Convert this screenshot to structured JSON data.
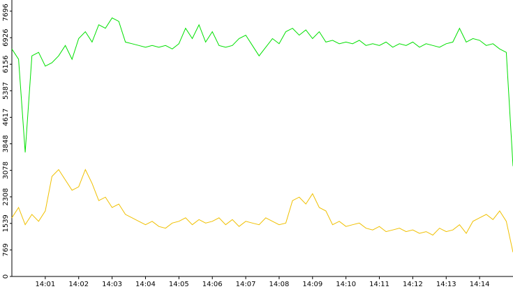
{
  "chart_data": {
    "type": "line",
    "x": [
      0,
      0.2,
      0.4,
      0.6,
      0.8,
      1,
      1.2,
      1.4,
      1.6,
      1.8,
      2,
      2.2,
      2.4,
      2.6,
      2.8,
      3,
      3.2,
      3.4,
      3.6,
      3.8,
      4,
      4.2,
      4.4,
      4.6,
      4.8,
      5,
      5.2,
      5.4,
      5.6,
      5.8,
      6,
      6.2,
      6.4,
      6.6,
      6.8,
      7,
      7.2,
      7.4,
      7.6,
      7.8,
      8,
      8.2,
      8.4,
      8.6,
      8.8,
      9,
      9.2,
      9.4,
      9.6,
      9.8,
      10,
      10.2,
      10.4,
      10.6,
      10.8,
      11,
      11.2,
      11.4,
      11.6,
      11.8,
      12,
      12.2,
      12.4,
      12.6,
      12.8,
      13,
      13.2,
      13.4,
      13.6,
      13.8,
      14,
      14.2,
      14.4,
      14.6,
      14.8,
      15
    ],
    "series": [
      {
        "color": "#00e000",
        "values": [
          6600,
          6300,
          3600,
          6400,
          6500,
          6100,
          6200,
          6400,
          6700,
          6300,
          6900,
          7100,
          6800,
          7300,
          7200,
          7500,
          7400,
          6800,
          6750,
          6700,
          6650,
          6700,
          6650,
          6700,
          6600,
          6750,
          7200,
          6900,
          7300,
          6800,
          7100,
          6700,
          6650,
          6700,
          6900,
          7000,
          6700,
          6400,
          6650,
          6900,
          6750,
          7100,
          7200,
          7000,
          7150,
          6900,
          7100,
          6800,
          6850,
          6750,
          6800,
          6750,
          6850,
          6700,
          6750,
          6700,
          6800,
          6650,
          6750,
          6700,
          6800,
          6650,
          6750,
          6700,
          6650,
          6750,
          6800,
          7200,
          6800,
          6900,
          6850,
          6700,
          6750,
          6600,
          6500,
          3200
        ]
      },
      {
        "color": "#f0c000",
        "values": [
          1700,
          2000,
          1500,
          1800,
          1600,
          1900,
          2900,
          3100,
          2800,
          2500,
          2600,
          3100,
          2700,
          2200,
          2300,
          2000,
          2100,
          1800,
          1700,
          1600,
          1500,
          1600,
          1450,
          1400,
          1550,
          1600,
          1700,
          1500,
          1650,
          1550,
          1600,
          1700,
          1500,
          1650,
          1450,
          1600,
          1550,
          1500,
          1700,
          1600,
          1500,
          1550,
          2200,
          2300,
          2100,
          2400,
          2000,
          1900,
          1500,
          1600,
          1450,
          1500,
          1550,
          1400,
          1350,
          1450,
          1300,
          1350,
          1400,
          1300,
          1350,
          1250,
          1300,
          1200,
          1400,
          1300,
          1350,
          1500,
          1250,
          1600,
          1700,
          1800,
          1650,
          1900,
          1600,
          700
        ]
      }
    ],
    "xlim": [
      0,
      15
    ],
    "xticks": [
      {
        "value": 1,
        "label": "14:01"
      },
      {
        "value": 2,
        "label": "14:02"
      },
      {
        "value": 3,
        "label": "14:03"
      },
      {
        "value": 4,
        "label": "14:04"
      },
      {
        "value": 5,
        "label": "14:05"
      },
      {
        "value": 6,
        "label": "14:06"
      },
      {
        "value": 7,
        "label": "14:07"
      },
      {
        "value": 8,
        "label": "14:08"
      },
      {
        "value": 9,
        "label": "14:09"
      },
      {
        "value": 10,
        "label": "14:10"
      },
      {
        "value": 11,
        "label": "14:11"
      },
      {
        "value": 12,
        "label": "14:12"
      },
      {
        "value": 13,
        "label": "14:13"
      },
      {
        "value": 14,
        "label": "14:14"
      }
    ],
    "ylim": [
      0,
      7696
    ],
    "yticks": [
      0,
      769,
      1539,
      2308,
      3078,
      3848,
      4617,
      5387,
      6156,
      6926,
      7696
    ]
  }
}
